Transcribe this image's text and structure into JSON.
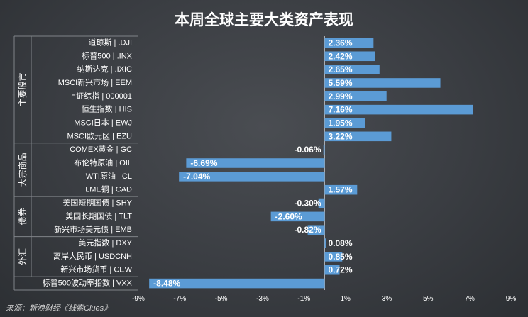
{
  "chart_data": {
    "type": "bar",
    "orientation": "horizontal",
    "title": "本周全球主要大类资产表现",
    "source": "来源：新浪财经《线索Clues》",
    "xlim": [
      -9,
      9
    ],
    "xticks": [
      "-9%",
      "-7%",
      "-5%",
      "-3%",
      "-1%",
      "1%",
      "3%",
      "5%",
      "7%",
      "9%"
    ],
    "xtick_values": [
      -9,
      -7,
      -5,
      -3,
      -1,
      1,
      3,
      5,
      7,
      9
    ],
    "bar_color": "#5b9bd5",
    "groups": [
      {
        "name": "主要股市",
        "start": 0,
        "end": 7
      },
      {
        "name": "大宗商品",
        "start": 8,
        "end": 11
      },
      {
        "name": "债券",
        "start": 12,
        "end": 14
      },
      {
        "name": "外汇",
        "start": 15,
        "end": 17
      }
    ],
    "categories": [
      "道琼斯 | .DJI",
      "标普500 | .INX",
      "纳斯达克 | .IXIC",
      "MSCI新兴市场 | EEM",
      "上证综指 | 000001",
      "恒生指数 | HIS",
      "MSCI日本 | EWJ",
      "MSCI欧元区 | EZU",
      "COMEX黄金 | GC",
      "布伦特原油 | OIL",
      "WTI原油 | CL",
      "LME铜 | CAD",
      "美国短期国债 | SHY",
      "美国长期国债 | TLT",
      "新兴市场美元债 | EMB",
      "美元指数 | DXY",
      "离岸人民币 | USDCNH",
      "新兴市场货币 | CEW",
      "标普500波动率指数 | VXX"
    ],
    "values": [
      2.36,
      2.42,
      2.65,
      5.59,
      2.99,
      7.16,
      1.95,
      3.22,
      -0.06,
      -6.69,
      -7.04,
      1.57,
      -0.3,
      -2.6,
      -0.82,
      0.08,
      0.85,
      0.72,
      -8.48
    ],
    "value_labels": [
      "2.36%",
      "2.42%",
      "2.65%",
      "5.59%",
      "2.99%",
      "7.16%",
      "1.95%",
      "3.22%",
      "-0.06%",
      "-6.69%",
      "-7.04%",
      "1.57%",
      "-0.30%",
      "-2.60%",
      "-0.82%",
      "0.08%",
      "0.85%",
      "0.72%",
      "-8.48%"
    ]
  }
}
